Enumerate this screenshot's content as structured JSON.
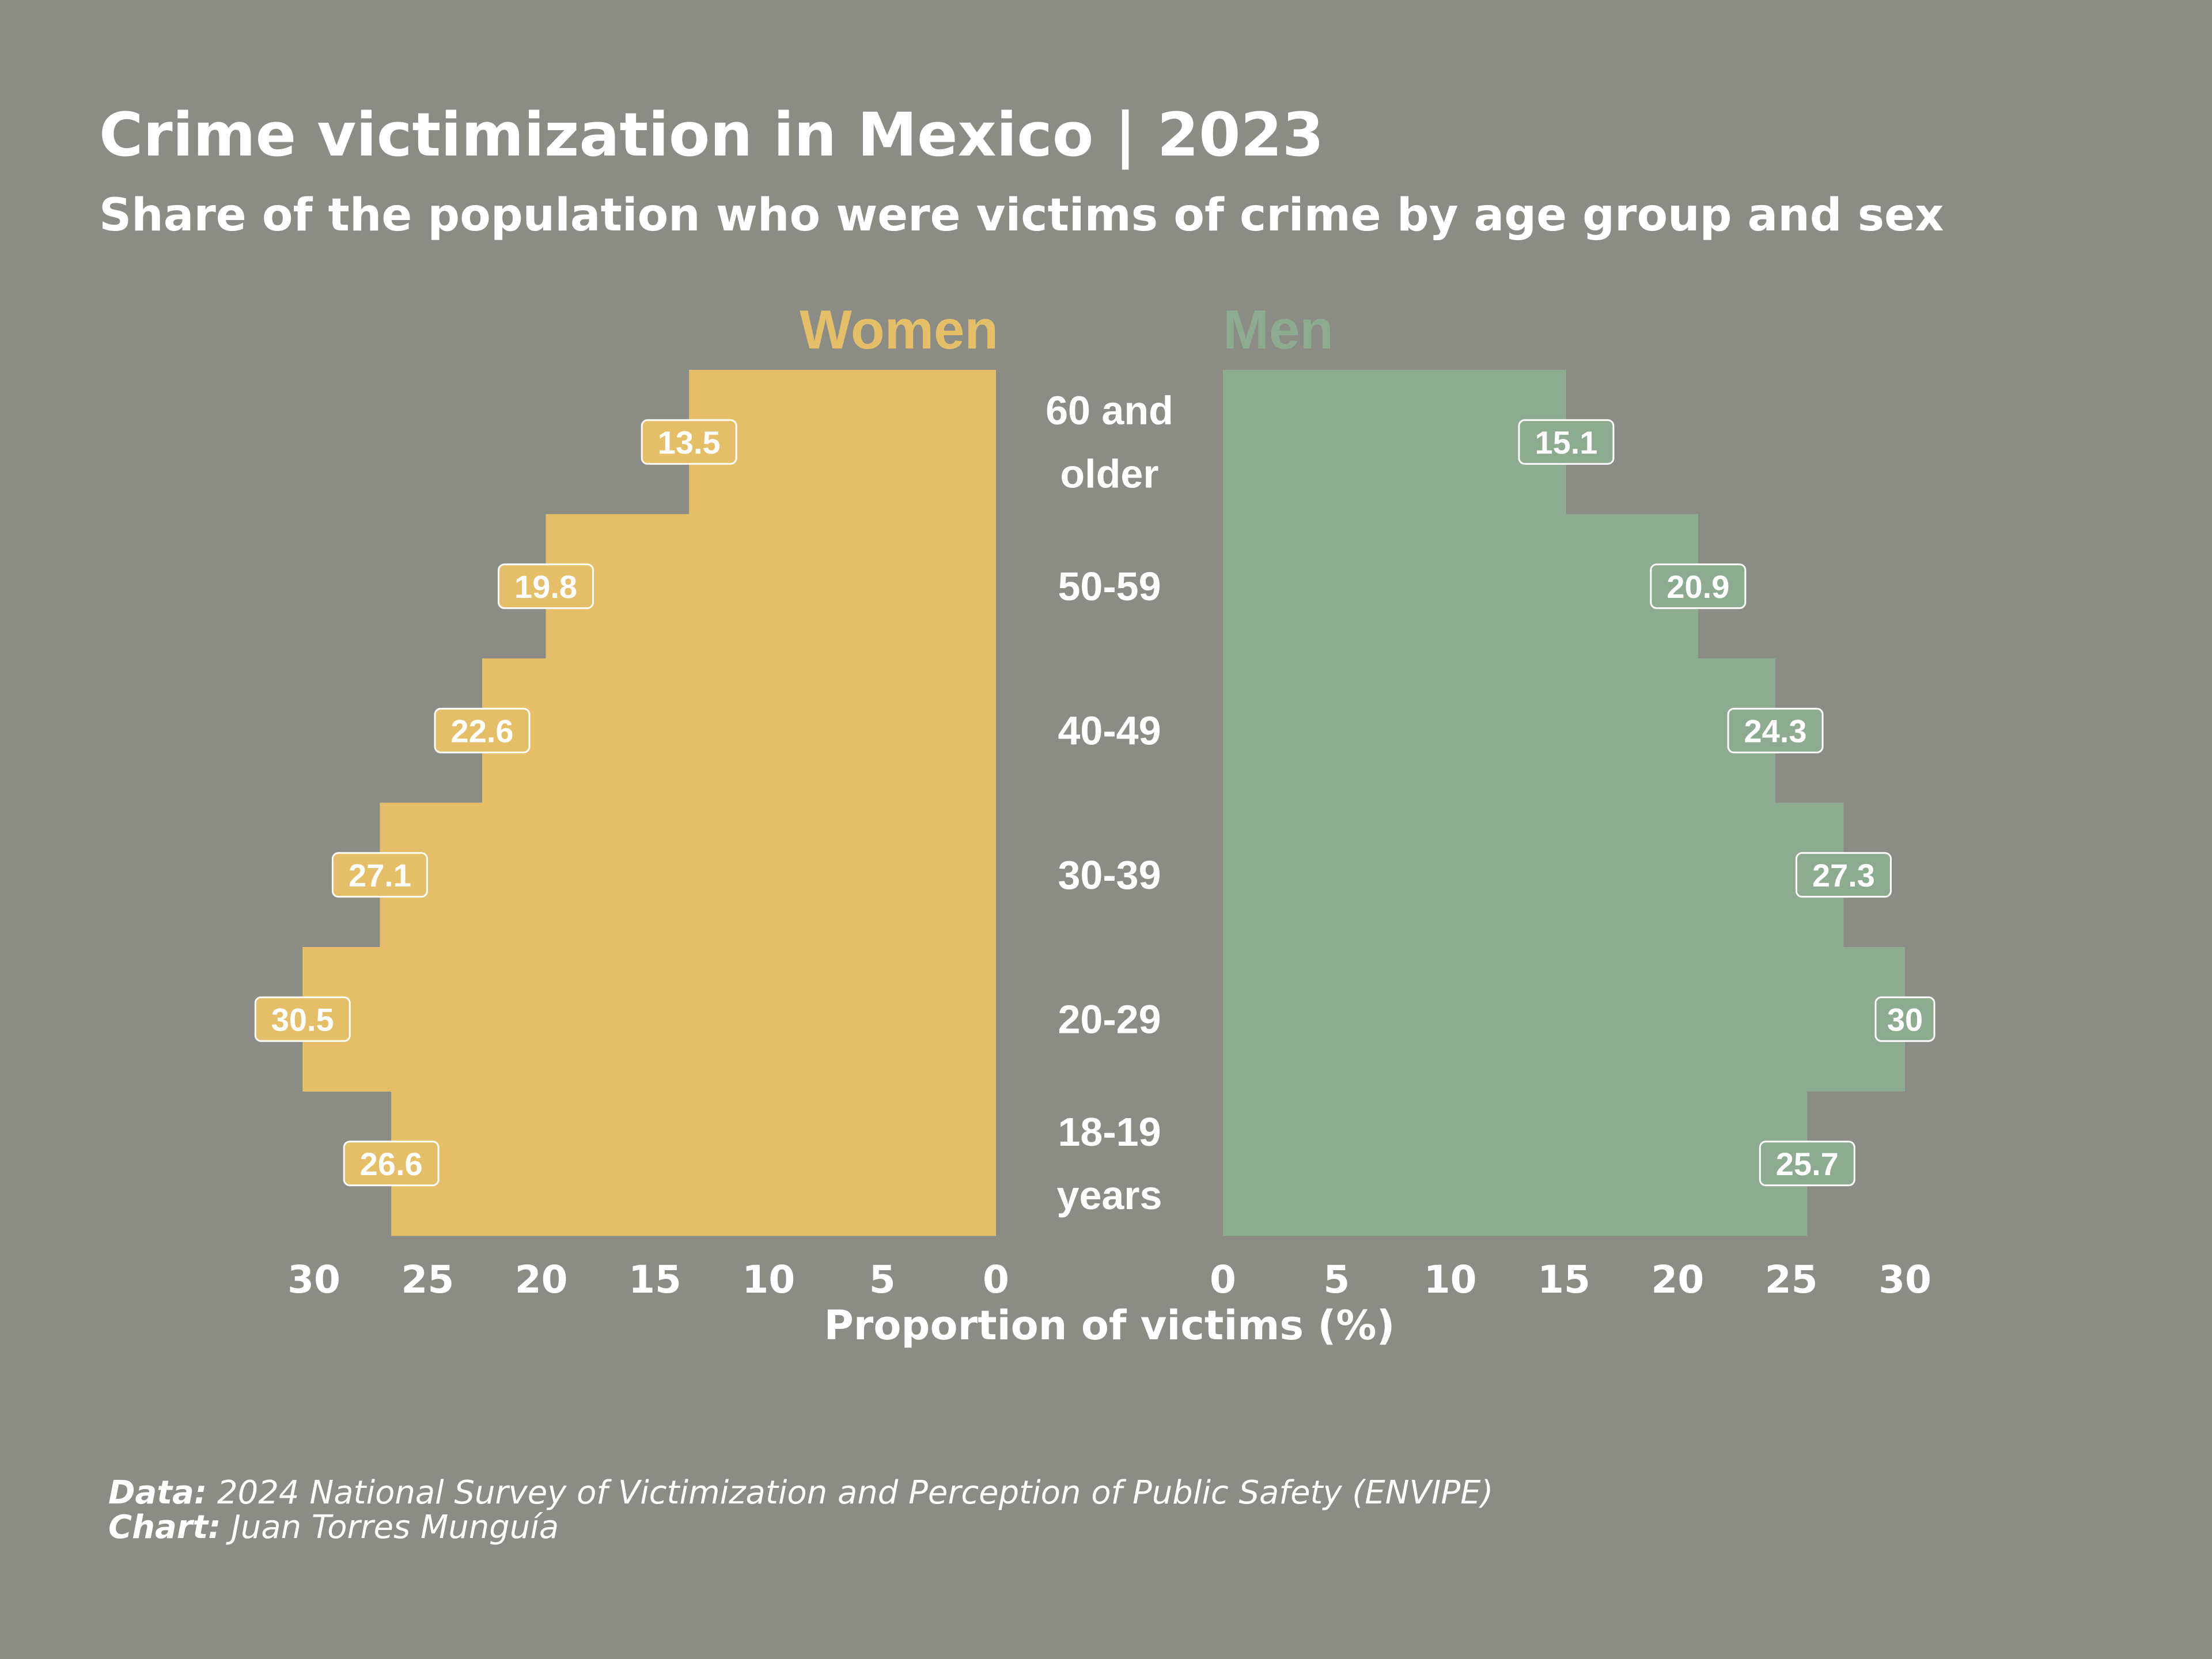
{
  "colors": {
    "background": "#8c8c86",
    "women": "#e4bf68",
    "men": "#8dab8e",
    "text": "#ffffff"
  },
  "chart_data": {
    "type": "bar",
    "subtype": "population-pyramid",
    "title": "Crime victimization in Mexico | 2023",
    "subtitle": "Share of the population who were victims of crime by age group and sex",
    "categories": [
      "60 and older",
      "50-59",
      "40-49",
      "30-39",
      "20-29",
      "18-19 years"
    ],
    "category_lines": [
      [
        "60 and",
        "older"
      ],
      [
        "50-59"
      ],
      [
        "40-49"
      ],
      [
        "30-39"
      ],
      [
        "20-29"
      ],
      [
        "18-19",
        "years"
      ]
    ],
    "series": [
      {
        "name": "Women",
        "side": "left",
        "values": [
          13.5,
          19.8,
          22.6,
          27.1,
          30.5,
          26.6
        ]
      },
      {
        "name": "Men",
        "side": "right",
        "values": [
          15.1,
          20.9,
          24.3,
          27.3,
          30,
          25.7
        ]
      }
    ],
    "data_labels": {
      "Women": [
        "13.5",
        "19.8",
        "22.6",
        "27.1",
        "30.5",
        "26.6"
      ],
      "Men": [
        "15.1",
        "20.9",
        "24.3",
        "27.3",
        "30",
        "25.7"
      ]
    },
    "xlabel": "Proportion of victims (%)",
    "xlim": [
      0,
      30
    ],
    "xticks": [
      0,
      5,
      10,
      15,
      20,
      25,
      30
    ],
    "grid": false,
    "legend_placement": "top, above each side"
  },
  "caption": {
    "data_label": "Data:",
    "data_text": " 2024 National Survey of Victimization and Perception of Public Safety (ENVIPE)",
    "chart_label": "Chart:",
    "chart_text": " Juan Torres Munguía"
  }
}
